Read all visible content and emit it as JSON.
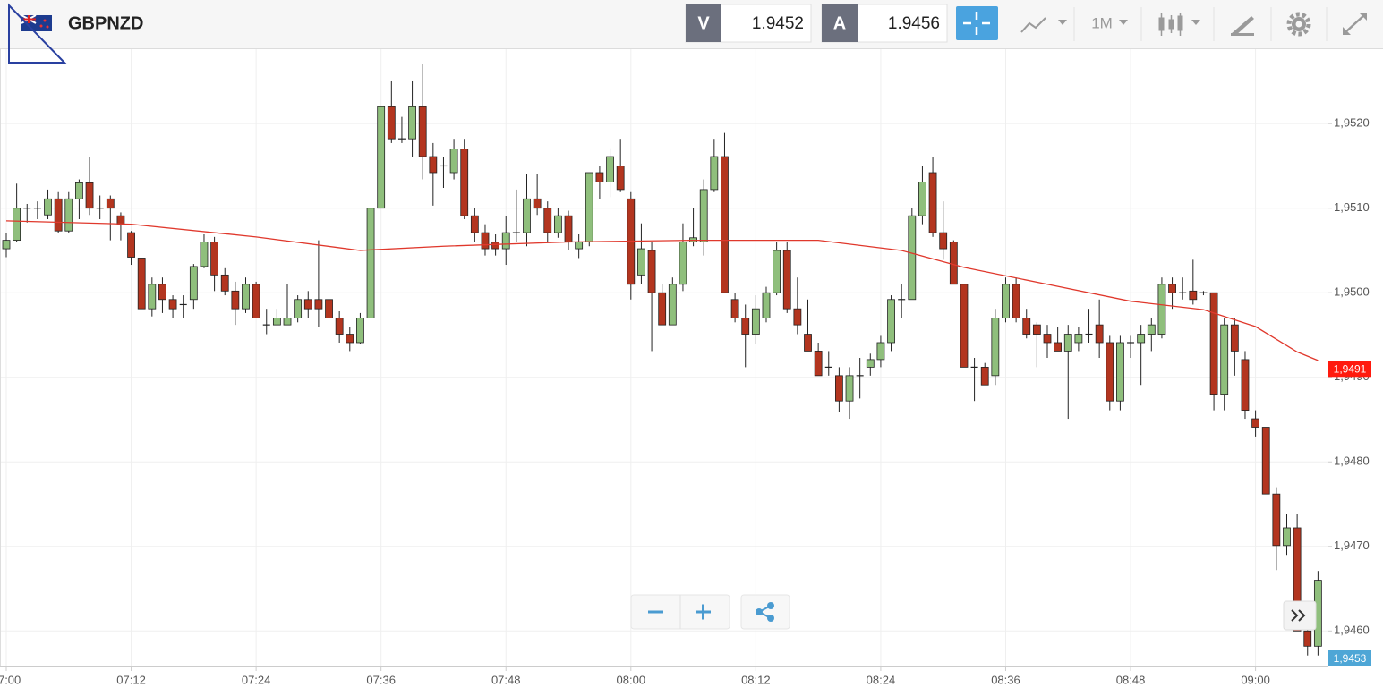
{
  "header": {
    "symbol": "GBPNZD",
    "bid_label": "V",
    "bid": 1.9452,
    "ask_label": "A",
    "ask": 1.9456,
    "timeframe": "1M"
  },
  "chart_data": {
    "type": "candlestick",
    "x": [
      "07:00",
      "07:01",
      "07:02",
      "07:03",
      "07:04",
      "07:05",
      "07:06",
      "07:07",
      "07:08",
      "07:09",
      "07:10",
      "07:11",
      "07:12",
      "07:13",
      "07:14",
      "07:15",
      "07:16",
      "07:17",
      "07:18",
      "07:19",
      "07:20",
      "07:21",
      "07:22",
      "07:23",
      "07:24",
      "07:25",
      "07:26",
      "07:27",
      "07:28",
      "07:29",
      "07:30",
      "07:31",
      "07:32",
      "07:33",
      "07:34",
      "07:35",
      "07:36",
      "07:37",
      "07:38",
      "07:39",
      "07:40",
      "07:41",
      "07:42",
      "07:43",
      "07:44",
      "07:45",
      "07:46",
      "07:47",
      "07:48",
      "07:49",
      "07:50",
      "07:51",
      "07:52",
      "07:53",
      "07:54",
      "07:55",
      "07:56",
      "07:57",
      "07:58",
      "07:59",
      "08:00",
      "08:01",
      "08:02",
      "08:03",
      "08:04",
      "08:05",
      "08:06",
      "08:07",
      "08:08",
      "08:09",
      "08:10",
      "08:11",
      "08:12",
      "08:13",
      "08:14",
      "08:15",
      "08:16",
      "08:17",
      "08:18",
      "08:19",
      "08:20",
      "08:21",
      "08:22",
      "08:23",
      "08:24",
      "08:25",
      "08:26",
      "08:27",
      "08:28",
      "08:29",
      "08:30",
      "08:31",
      "08:32",
      "08:33",
      "08:34",
      "08:35",
      "08:36",
      "08:37",
      "08:38",
      "08:39",
      "08:40",
      "08:41",
      "08:42",
      "08:43",
      "08:44",
      "08:45",
      "08:46",
      "08:47",
      "08:48",
      "08:49",
      "08:50",
      "08:51",
      "08:52",
      "08:53",
      "08:54",
      "08:55",
      "08:56",
      "08:57",
      "08:58",
      "08:59",
      "09:00",
      "09:01",
      "09:02",
      "09:03",
      "09:04",
      "09:05",
      "09:06"
    ],
    "open": [
      1.95052,
      1.95062,
      1.951,
      1.951,
      1.95092,
      1.95111,
      1.95073,
      1.95111,
      1.9513,
      1.951,
      1.95111,
      1.95091,
      1.95071,
      1.95041,
      1.94981,
      1.9501,
      1.94992,
      1.94986,
      1.94992,
      1.95031,
      1.9506,
      1.95021,
      1.95002,
      1.94981,
      1.9501,
      1.94962,
      1.94962,
      1.94962,
      1.9497,
      1.94992,
      1.94992,
      1.94992,
      1.9497,
      1.94951,
      1.94941,
      1.9497,
      1.951,
      1.9522,
      1.95182,
      1.95182,
      1.9522,
      1.95161,
      1.9515,
      1.95142,
      1.9517,
      1.95091,
      1.95071,
      1.9506,
      1.95052,
      1.95071,
      1.95071,
      1.95111,
      1.951,
      1.95071,
      1.95091,
      1.95052,
      1.9506,
      1.95142,
      1.95131,
      1.9515,
      1.95111,
      1.95021,
      1.9505,
      1.95,
      1.94962,
      1.9501,
      1.9506,
      1.9506,
      1.95122,
      1.95161,
      1.94992,
      1.9497,
      1.94951,
      1.9497,
      1.95,
      1.9505,
      1.94981,
      1.94951,
      1.94931,
      1.94912,
      1.94902,
      1.94872,
      1.94902,
      1.94912,
      1.94921,
      1.94941,
      1.94992,
      1.94992,
      1.95091,
      1.95142,
      1.95071,
      1.9506,
      1.9501,
      1.94912,
      1.94912,
      1.94902,
      1.9497,
      1.9501,
      1.9497,
      1.94962,
      1.94951,
      1.94941,
      1.94931,
      1.94941,
      1.94951,
      1.94962,
      1.94941,
      1.94872,
      1.94941,
      1.94941,
      1.94951,
      1.94951,
      1.9501,
      1.95,
      1.95002,
      1.95,
      1.95,
      1.9488,
      1.94962,
      1.94921,
      1.94851,
      1.94841,
      1.94762,
      1.94701,
      1.94722,
      1.946,
      1.94582
    ],
    "high": [
      1.95071,
      1.95129,
      1.95105,
      1.95108,
      1.95122,
      1.95119,
      1.95119,
      1.95134,
      1.9516,
      1.95115,
      1.95115,
      1.95095,
      1.95073,
      1.95041,
      1.95018,
      1.95018,
      1.94997,
      1.94997,
      1.95034,
      1.95069,
      1.95066,
      1.95029,
      1.95013,
      1.95018,
      1.95013,
      1.94981,
      1.94981,
      1.9501,
      1.94997,
      1.95002,
      1.95062,
      1.94992,
      1.94978,
      1.9496,
      1.94976,
      1.951,
      1.9522,
      1.95251,
      1.95208,
      1.95251,
      1.9527,
      1.95177,
      1.95161,
      1.95182,
      1.95182,
      1.951,
      1.95081,
      1.95069,
      1.95091,
      1.95122,
      1.9514,
      1.9514,
      1.95108,
      1.951,
      1.95097,
      1.95069,
      1.95142,
      1.9515,
      1.95171,
      1.95182,
      1.95119,
      1.95082,
      1.9506,
      1.9501,
      1.95018,
      1.95082,
      1.951,
      1.95134,
      1.95182,
      1.95189,
      1.95,
      1.94986,
      1.94997,
      1.95007,
      1.9506,
      1.9506,
      1.95018,
      1.94992,
      1.94941,
      1.94931,
      1.94912,
      1.94912,
      1.94923,
      1.94928,
      1.94949,
      1.94997,
      1.9501,
      1.951,
      1.9515,
      1.95161,
      1.95108,
      1.95062,
      1.9501,
      1.94923,
      1.94917,
      1.94981,
      1.95018,
      1.95018,
      1.94981,
      1.94965,
      1.94962,
      1.9496,
      1.94962,
      1.9496,
      1.94981,
      1.94992,
      1.94949,
      1.94949,
      1.94949,
      1.94962,
      1.9497,
      1.95018,
      1.95018,
      1.95018,
      1.95039,
      1.95002,
      1.95,
      1.9497,
      1.9497,
      1.94931,
      1.94861,
      1.94841,
      1.9477,
      1.94738,
      1.94738,
      1.94616,
      1.94671
    ],
    "low": [
      1.95042,
      1.9506,
      1.95083,
      1.95087,
      1.95087,
      1.95071,
      1.95071,
      1.95087,
      1.95092,
      1.95087,
      1.95062,
      1.95062,
      1.95033,
      1.94981,
      1.94972,
      1.94976,
      1.9497,
      1.9497,
      1.94981,
      1.95029,
      1.95002,
      1.94997,
      1.94962,
      1.94976,
      1.9497,
      1.94951,
      1.94962,
      1.94962,
      1.94965,
      1.9497,
      1.9496,
      1.9497,
      1.94941,
      1.94931,
      1.94939,
      1.9497,
      1.951,
      1.95177,
      1.95177,
      1.95161,
      1.95134,
      1.95103,
      1.95124,
      1.95134,
      1.95087,
      1.9506,
      1.95044,
      1.95044,
      1.95033,
      1.9506,
      1.95055,
      1.95092,
      1.9506,
      1.95065,
      1.9505,
      1.95041,
      1.95055,
      1.95111,
      1.95113,
      1.95119,
      1.94992,
      1.9501,
      1.94931,
      1.94962,
      1.94962,
      1.95002,
      1.95055,
      1.95044,
      1.95119,
      1.95,
      1.94965,
      1.94912,
      1.94939,
      1.94965,
      1.94997,
      1.94976,
      1.94951,
      1.94931,
      1.94902,
      1.94902,
      1.94859,
      1.94851,
      1.94875,
      1.94902,
      1.94912,
      1.94931,
      1.9497,
      1.94992,
      1.95081,
      1.95066,
      1.95039,
      1.9501,
      1.94912,
      1.94872,
      1.94891,
      1.94891,
      1.94965,
      1.94965,
      1.94946,
      1.94912,
      1.94923,
      1.94931,
      1.94851,
      1.94931,
      1.94941,
      1.94923,
      1.94861,
      1.94861,
      1.94923,
      1.94891,
      1.94931,
      1.94946,
      1.94981,
      1.94992,
      1.94986,
      1.94997,
      1.94861,
      1.94861,
      1.94902,
      1.94851,
      1.9483,
      1.94762,
      1.94672,
      1.9469,
      1.946,
      1.94571,
      1.94571
    ],
    "close": [
      1.95062,
      1.951,
      1.951,
      1.951,
      1.95111,
      1.95073,
      1.95111,
      1.9513,
      1.951,
      1.951,
      1.951,
      1.95081,
      1.95042,
      1.94981,
      1.9501,
      1.94992,
      1.94981,
      1.94986,
      1.95031,
      1.9506,
      1.95021,
      1.95002,
      1.94981,
      1.9501,
      1.9497,
      1.94962,
      1.9497,
      1.9497,
      1.94992,
      1.94981,
      1.94981,
      1.9497,
      1.94951,
      1.94941,
      1.9497,
      1.951,
      1.9522,
      1.95182,
      1.95182,
      1.9522,
      1.95161,
      1.95142,
      1.9515,
      1.9517,
      1.95091,
      1.95071,
      1.95052,
      1.95052,
      1.95071,
      1.95071,
      1.95111,
      1.951,
      1.95071,
      1.95091,
      1.9506,
      1.9506,
      1.95142,
      1.95131,
      1.95161,
      1.95122,
      1.9501,
      1.95052,
      1.95,
      1.94962,
      1.9501,
      1.9506,
      1.95065,
      1.95122,
      1.95161,
      1.95,
      1.9497,
      1.94951,
      1.94981,
      1.95,
      1.9505,
      1.94981,
      1.94962,
      1.94931,
      1.94902,
      1.94912,
      1.94872,
      1.94902,
      1.94902,
      1.94921,
      1.94941,
      1.94992,
      1.94992,
      1.95091,
      1.95131,
      1.95071,
      1.95052,
      1.9501,
      1.94912,
      1.94912,
      1.94891,
      1.9497,
      1.9501,
      1.9497,
      1.94951,
      1.94951,
      1.94941,
      1.94931,
      1.94951,
      1.94951,
      1.94951,
      1.94941,
      1.94872,
      1.94941,
      1.94941,
      1.94951,
      1.94962,
      1.9501,
      1.95,
      1.95,
      1.94992,
      1.95,
      1.9488,
      1.94962,
      1.94931,
      1.94861,
      1.94841,
      1.94762,
      1.94701,
      1.94722,
      1.946,
      1.94582,
      1.9466
    ],
    "up_color": "#8fbf7c",
    "down_color": "#b3351f",
    "moving_average": {
      "color": "#e0382c",
      "x": [
        "07:00",
        "07:12",
        "07:24",
        "07:34",
        "07:42",
        "07:54",
        "08:06",
        "08:18",
        "08:26",
        "08:32",
        "08:40",
        "08:48",
        "08:55",
        "09:00",
        "09:04",
        "09:06"
      ],
      "values": [
        1.95085,
        1.95081,
        1.95066,
        1.9505,
        1.95055,
        1.9506,
        1.95062,
        1.95062,
        1.9505,
        1.9503,
        1.9501,
        1.9499,
        1.9498,
        1.9496,
        1.9493,
        1.9492
      ]
    },
    "ylim": [
      1.94558,
      1.95288
    ],
    "yticks": [
      {
        "value": 1.946,
        "label": "1,9460"
      },
      {
        "value": 1.947,
        "label": "1,9470"
      },
      {
        "value": 1.948,
        "label": "1,9480"
      },
      {
        "value": 1.949,
        "label": "1,9490"
      },
      {
        "value": 1.95,
        "label": "1,9500"
      },
      {
        "value": 1.951,
        "label": "1,9510"
      },
      {
        "value": 1.952,
        "label": "1,9520"
      }
    ],
    "xticks": [
      "07:00",
      "07:12",
      "07:24",
      "07:36",
      "07:48",
      "08:00",
      "08:12",
      "08:24",
      "08:36",
      "08:48",
      "09:00"
    ],
    "grid": true,
    "price_markers": [
      {
        "value": 1.9491,
        "label": "1,9491",
        "color": "#ff1a0e"
      },
      {
        "value": 1.9453,
        "label": "1,9453",
        "color": "#4ea6d6"
      }
    ]
  }
}
